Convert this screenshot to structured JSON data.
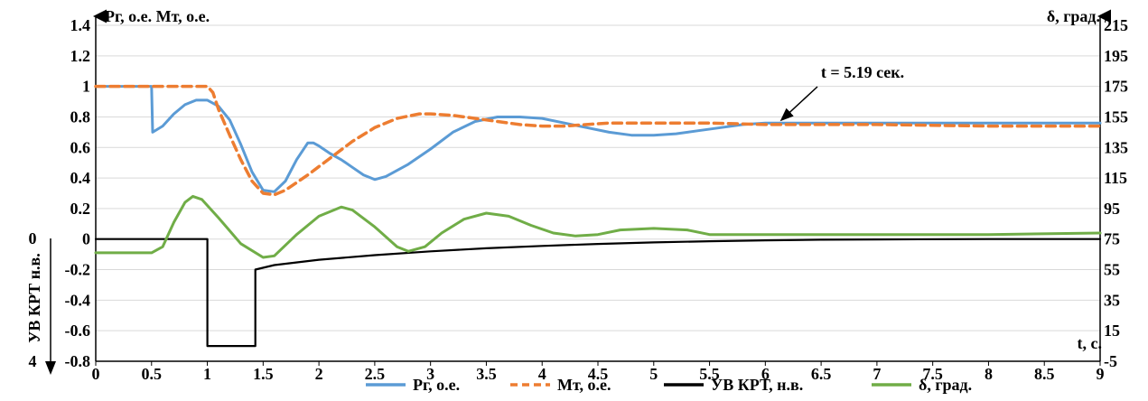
{
  "chart_data": {
    "type": "line",
    "left_axis_label": "Pг, о.е.  Mт, о.е.",
    "right_axis_label": "δ, град.",
    "xlabel": "t, с.",
    "inner_axis_label": "УВ КРТ н.в.",
    "inner_axis_top_tick": "0",
    "inner_axis_bottom_tick": "4",
    "xlim": [
      0,
      9
    ],
    "ylim": [
      -0.8,
      1.4
    ],
    "y2lim": [
      -5,
      215
    ],
    "x_ticks": [
      "0",
      "0.5",
      "1",
      "1.5",
      "2",
      "2.5",
      "3",
      "3.5",
      "4",
      "4.5",
      "5",
      "5.5",
      "6",
      "6.5",
      "7",
      "7.5",
      "8",
      "8.5",
      "9"
    ],
    "y_ticks": [
      "-0.8",
      "-0.6",
      "-0.4",
      "-0.2",
      "0",
      "0.2",
      "0.4",
      "0.6",
      "0.8",
      "1",
      "1.2",
      "1.4"
    ],
    "y2_ticks": [
      "-5",
      "15",
      "35",
      "55",
      "75",
      "95",
      "115",
      "135",
      "155",
      "175",
      "195",
      "215"
    ],
    "grid": "horizontal",
    "legend_position": "bottom",
    "annotation": {
      "text": "t = 5.19 сек.",
      "x": 6.15,
      "y": 0.76
    },
    "series": [
      {
        "name": "Pг, о.е.",
        "color": "#5b9bd5",
        "dash": "solid",
        "axis": "left",
        "points": [
          [
            0,
            1
          ],
          [
            0.5,
            1
          ],
          [
            0.51,
            0.7
          ],
          [
            0.6,
            0.74
          ],
          [
            0.7,
            0.82
          ],
          [
            0.8,
            0.88
          ],
          [
            0.9,
            0.91
          ],
          [
            1.0,
            0.91
          ],
          [
            1.1,
            0.87
          ],
          [
            1.2,
            0.78
          ],
          [
            1.3,
            0.62
          ],
          [
            1.4,
            0.44
          ],
          [
            1.5,
            0.32
          ],
          [
            1.6,
            0.31
          ],
          [
            1.7,
            0.38
          ],
          [
            1.8,
            0.52
          ],
          [
            1.9,
            0.63
          ],
          [
            1.95,
            0.63
          ],
          [
            2.0,
            0.61
          ],
          [
            2.1,
            0.56
          ],
          [
            2.2,
            0.52
          ],
          [
            2.3,
            0.47
          ],
          [
            2.4,
            0.42
          ],
          [
            2.5,
            0.39
          ],
          [
            2.6,
            0.41
          ],
          [
            2.8,
            0.49
          ],
          [
            3.0,
            0.59
          ],
          [
            3.2,
            0.7
          ],
          [
            3.4,
            0.77
          ],
          [
            3.6,
            0.8
          ],
          [
            3.8,
            0.8
          ],
          [
            4.0,
            0.79
          ],
          [
            4.2,
            0.76
          ],
          [
            4.4,
            0.73
          ],
          [
            4.6,
            0.7
          ],
          [
            4.8,
            0.68
          ],
          [
            5.0,
            0.68
          ],
          [
            5.2,
            0.69
          ],
          [
            5.4,
            0.71
          ],
          [
            5.6,
            0.73
          ],
          [
            5.8,
            0.75
          ],
          [
            6.0,
            0.76
          ],
          [
            7.0,
            0.76
          ],
          [
            8.0,
            0.76
          ],
          [
            9.0,
            0.76
          ]
        ]
      },
      {
        "name": "Mт, о.е.",
        "color": "#ed7d31",
        "dash": "dashed",
        "axis": "left",
        "points": [
          [
            0,
            1
          ],
          [
            1.0,
            1
          ],
          [
            1.05,
            0.96
          ],
          [
            1.1,
            0.85
          ],
          [
            1.2,
            0.68
          ],
          [
            1.3,
            0.52
          ],
          [
            1.4,
            0.38
          ],
          [
            1.5,
            0.3
          ],
          [
            1.6,
            0.29
          ],
          [
            1.7,
            0.32
          ],
          [
            1.9,
            0.42
          ],
          [
            2.1,
            0.53
          ],
          [
            2.3,
            0.64
          ],
          [
            2.5,
            0.73
          ],
          [
            2.7,
            0.79
          ],
          [
            2.9,
            0.82
          ],
          [
            3.0,
            0.82
          ],
          [
            3.2,
            0.81
          ],
          [
            3.4,
            0.79
          ],
          [
            3.6,
            0.77
          ],
          [
            3.8,
            0.75
          ],
          [
            4.0,
            0.74
          ],
          [
            4.2,
            0.74
          ],
          [
            4.4,
            0.75
          ],
          [
            4.6,
            0.76
          ],
          [
            5.0,
            0.76
          ],
          [
            5.5,
            0.76
          ],
          [
            6.0,
            0.75
          ],
          [
            7.0,
            0.75
          ],
          [
            8.0,
            0.74
          ],
          [
            9.0,
            0.74
          ]
        ]
      },
      {
        "name": "УВ КРТ, н.в.",
        "color": "#000000",
        "dash": "solid",
        "axis": "left",
        "points": [
          [
            0,
            0
          ],
          [
            1.0,
            0
          ],
          [
            1.0,
            -0.7
          ],
          [
            1.43,
            -0.7
          ],
          [
            1.43,
            -0.2
          ],
          [
            1.6,
            -0.17
          ],
          [
            2.0,
            -0.135
          ],
          [
            2.5,
            -0.105
          ],
          [
            3.0,
            -0.08
          ],
          [
            3.5,
            -0.06
          ],
          [
            4.0,
            -0.045
          ],
          [
            4.5,
            -0.032
          ],
          [
            5.0,
            -0.022
          ],
          [
            5.5,
            -0.014
          ],
          [
            6.0,
            -0.008
          ],
          [
            6.5,
            -0.004
          ],
          [
            7.0,
            -0.002
          ],
          [
            8.0,
            0
          ],
          [
            9.0,
            0
          ]
        ]
      },
      {
        "name": "δ, град.",
        "color": "#70ad47",
        "dash": "solid",
        "axis": "right",
        "points": [
          [
            0,
            66
          ],
          [
            0.5,
            66
          ],
          [
            0.6,
            70
          ],
          [
            0.7,
            86
          ],
          [
            0.8,
            99
          ],
          [
            0.87,
            103
          ],
          [
            0.95,
            101
          ],
          [
            1.1,
            89
          ],
          [
            1.3,
            72
          ],
          [
            1.5,
            63
          ],
          [
            1.6,
            64
          ],
          [
            1.8,
            78
          ],
          [
            2.0,
            90
          ],
          [
            2.2,
            96
          ],
          [
            2.3,
            94
          ],
          [
            2.5,
            83
          ],
          [
            2.7,
            70
          ],
          [
            2.8,
            67
          ],
          [
            2.95,
            70
          ],
          [
            3.1,
            79
          ],
          [
            3.3,
            88
          ],
          [
            3.5,
            92
          ],
          [
            3.7,
            90
          ],
          [
            3.9,
            84
          ],
          [
            4.1,
            79
          ],
          [
            4.3,
            77
          ],
          [
            4.5,
            78
          ],
          [
            4.7,
            81
          ],
          [
            5.0,
            82
          ],
          [
            5.3,
            81
          ],
          [
            5.5,
            78
          ],
          [
            6.0,
            78
          ],
          [
            7.0,
            78
          ],
          [
            8.0,
            78
          ],
          [
            9.0,
            79
          ]
        ]
      }
    ]
  }
}
